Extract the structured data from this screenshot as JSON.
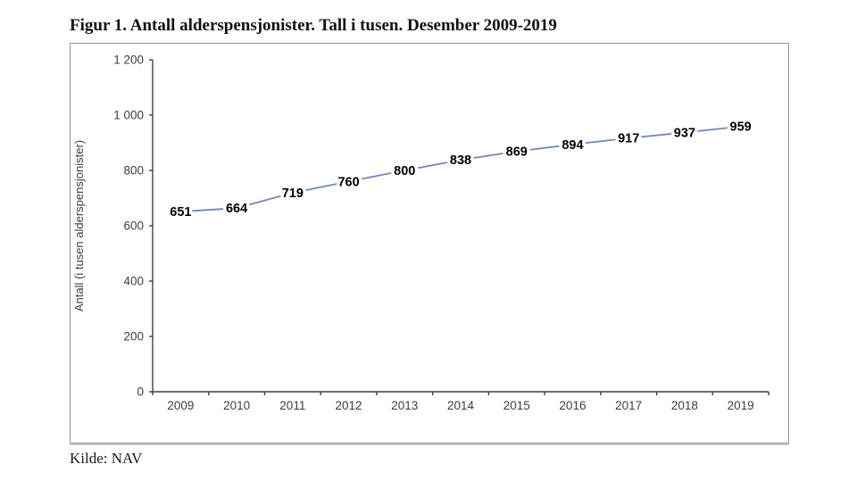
{
  "chart_data": {
    "type": "line",
    "title": "Figur 1. Antall alderspensjonister. Tall i tusen. Desember 2009-2019",
    "source": "Kilde: NAV",
    "categories": [
      "2009",
      "2010",
      "2011",
      "2012",
      "2013",
      "2014",
      "2015",
      "2016",
      "2017",
      "2018",
      "2019"
    ],
    "values": [
      651,
      664,
      719,
      760,
      800,
      838,
      869,
      894,
      917,
      937,
      959
    ],
    "xlabel": "",
    "ylabel": "Antall (i tusen alderspensjonister)",
    "ylim": [
      0,
      1200
    ],
    "ytick_interval": 200,
    "ytick_labels": [
      "0",
      "200",
      "400",
      "600",
      "800",
      "1 000",
      "1 200"
    ],
    "grid": false,
    "legend": "none",
    "data_labels": true,
    "line_color": "#7585bb",
    "data_label_color": "#000000",
    "axis_color": "#404040",
    "tick_label_color": "#3d3d3d"
  }
}
